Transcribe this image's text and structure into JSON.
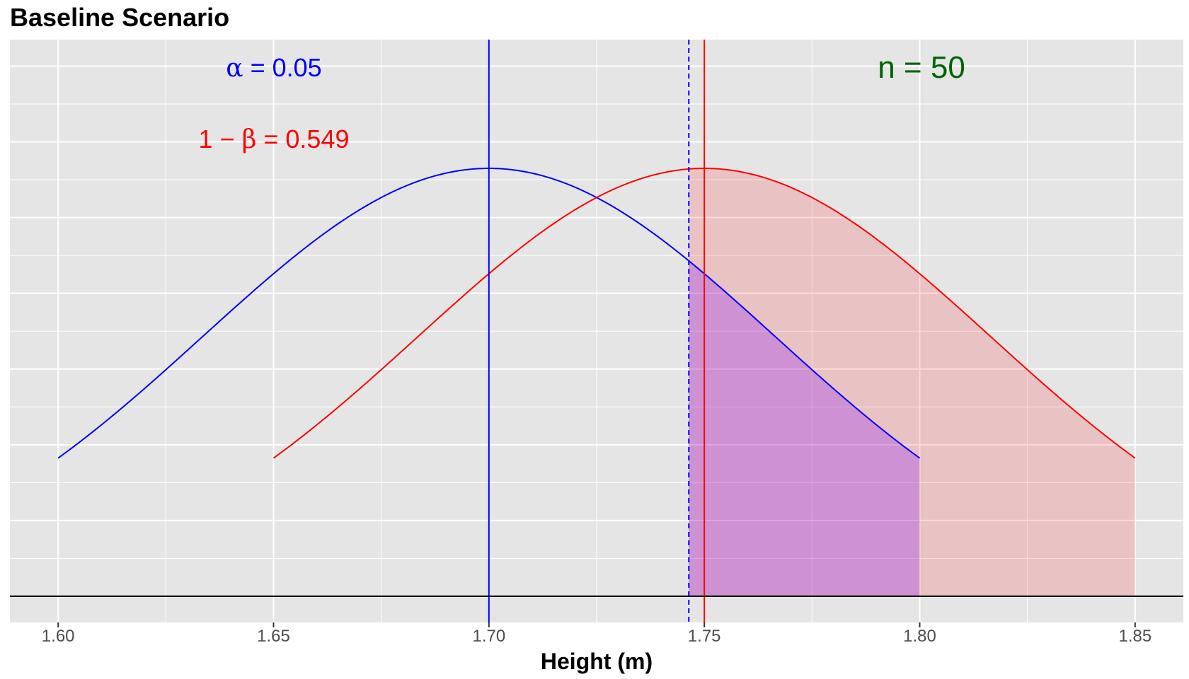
{
  "chart_data": {
    "type": "area",
    "title": "Baseline Scenario",
    "xlabel": "Height (m)",
    "ylabel": "",
    "xlim": [
      1.5888,
      1.8612
    ],
    "x_ticks": [
      1.6,
      1.65,
      1.7,
      1.75,
      1.8,
      1.85
    ],
    "x_tick_labels": [
      "1.60",
      "1.65",
      "1.70",
      "1.75",
      "1.80",
      "1.85"
    ],
    "grid": true,
    "panel_background": "#e5e5e5",
    "series": [
      {
        "role": "null distribution",
        "mean": 1.7,
        "sd": 0.0665,
        "sample_size": 50,
        "x_range": [
          1.6,
          1.8
        ],
        "color": "#0000ff",
        "mean_line": "solid"
      },
      {
        "role": "alternative distribution",
        "mean": 1.75,
        "sd": 0.0665,
        "sample_size": 50,
        "x_range": [
          1.65,
          1.85
        ],
        "color": "#ff0000",
        "mean_line": "solid"
      }
    ],
    "critical_value": 1.7464,
    "critical_line": {
      "color": "#0000ff",
      "style": "dashed"
    },
    "shaded_regions": [
      {
        "under": "alternative distribution",
        "from": 1.7464,
        "to": 1.85,
        "color": "#ff0000",
        "opacity": 0.15
      },
      {
        "under": "null distribution",
        "from": 1.7464,
        "to": 1.8,
        "color": "#8000ff",
        "opacity": 0.25
      }
    ],
    "annotations": [
      {
        "id": "alpha",
        "prefix_symbol": "α",
        "text": " = ",
        "value": "0.05",
        "color": "#0000ff"
      },
      {
        "id": "power",
        "prefix": "1 − ",
        "symbol": "β",
        "text": " = ",
        "value": "0.549",
        "color": "#ff0000"
      },
      {
        "id": "n",
        "prefix": "n",
        "text": " = ",
        "value": "50",
        "color": "#006400"
      }
    ]
  }
}
